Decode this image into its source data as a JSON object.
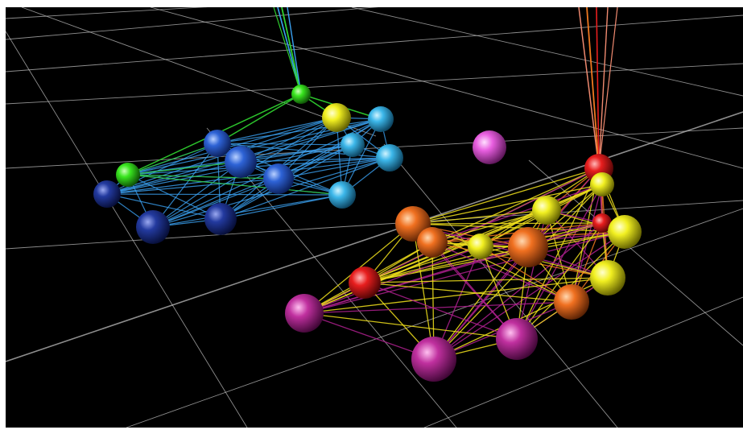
{
  "scene": {
    "background": "#000000",
    "grid_color": "#bdbdbd",
    "node_colors": {
      "green": "#39e61f",
      "yellow": "#f2f021",
      "light-blue": "#3cb7ea",
      "blue": "#2e63d6",
      "dark-blue": "#233a9f",
      "pink": "#e85fe0",
      "red": "#e81e1e",
      "orange": "#f07020",
      "magenta": "#c0309f"
    },
    "edge_colors": {
      "blue-cluster": "#3aa0f0",
      "green": "#2fcf2f",
      "yellow": "#f2e21d",
      "orange": "#f07820",
      "magenta": "#b02090",
      "salmon": "#f08a70"
    }
  }
}
